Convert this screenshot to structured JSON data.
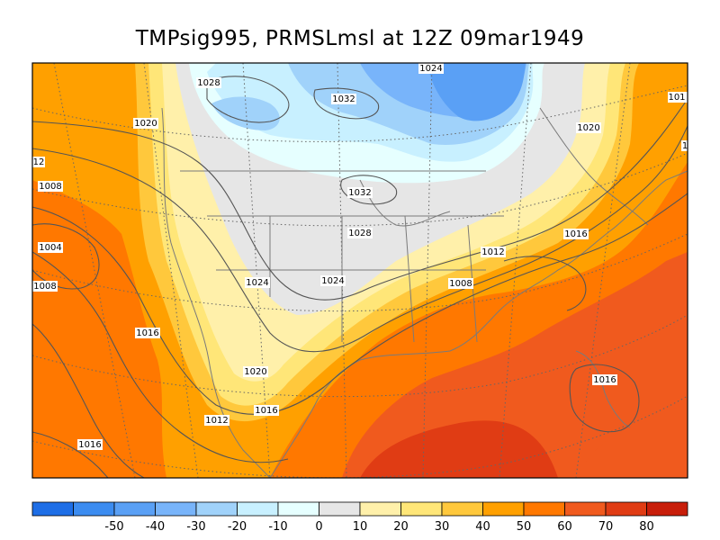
{
  "title": "TMPsig995, PRMSLmsl at 12Z  09mar1949",
  "colorbar": {
    "colors": [
      "#1e6ee6",
      "#3c8cf0",
      "#5aa0f5",
      "#78b4fa",
      "#a0d2fa",
      "#c8f0ff",
      "#e6ffff",
      "#e6e6e6",
      "#fff0aa",
      "#ffe678",
      "#ffc83c",
      "#ffa000",
      "#ff7800",
      "#f05a1e",
      "#e03c14",
      "#c81e0a"
    ],
    "tick_labels": [
      "-50",
      "-40",
      "-30",
      "-20",
      "-10",
      "0",
      "10",
      "20",
      "30",
      "40",
      "50",
      "60",
      "70",
      "80"
    ]
  },
  "isobar_labels": [
    "1024",
    "1028",
    "1032",
    "1020",
    "1020",
    "12",
    "1008",
    "1032",
    "1028",
    "1016",
    "1004",
    "1012",
    "1008",
    "1008",
    "1024",
    "1024",
    "1016",
    "1020",
    "1016",
    "1016",
    "1012",
    "1016",
    "101",
    "1"
  ]
}
